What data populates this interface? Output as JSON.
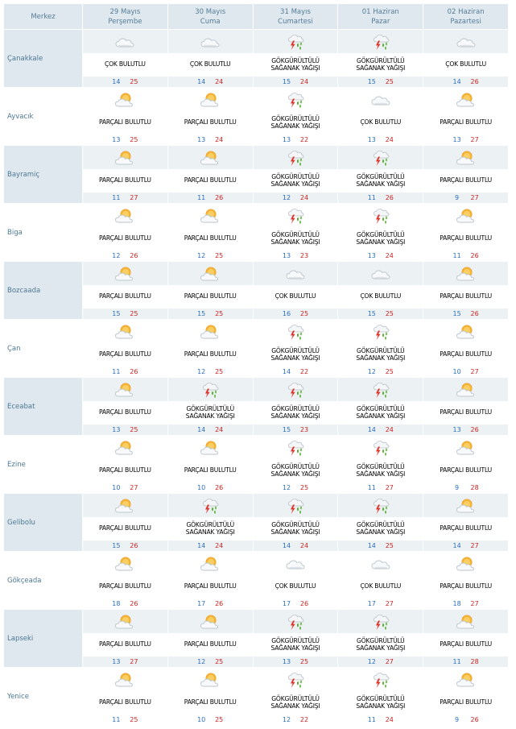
{
  "header": {
    "merkez": "Merkez",
    "days": [
      {
        "date": "29 Mayıs",
        "weekday": "Perşembe"
      },
      {
        "date": "30 Mayıs",
        "weekday": "Cuma"
      },
      {
        "date": "31 Mayıs",
        "weekday": "Cumartesi"
      },
      {
        "date": "01 Haziran",
        "weekday": "Pazar"
      },
      {
        "date": "02 Haziran",
        "weekday": "Pazartesi"
      }
    ]
  },
  "conditions": {
    "cok": [
      "ÇOK BULUTLU"
    ],
    "parcali": [
      "PARÇALI BULUTLU"
    ],
    "gok": [
      "GÖKGÜRÜLTÜLÜ",
      "SAĞANAK YAĞIŞI"
    ]
  },
  "icons": {
    "cok": "cloudy-icon",
    "parcali": "partly-cloudy-icon",
    "gok": "thunderstorm-shower-icon"
  },
  "colors": {
    "header_bg": "#dfe8ee",
    "city_text": "#4d7894",
    "min_temp": "#2a6fbe",
    "max_temp": "#cc2222"
  },
  "rows": [
    {
      "city": "Çanakkale",
      "days": [
        {
          "cond": "cok",
          "min": "14",
          "max": "25"
        },
        {
          "cond": "cok",
          "min": "14",
          "max": "24"
        },
        {
          "cond": "gok",
          "min": "15",
          "max": "24"
        },
        {
          "cond": "gok",
          "min": "15",
          "max": "25"
        },
        {
          "cond": "cok",
          "min": "14",
          "max": "26"
        }
      ]
    },
    {
      "city": "Ayvacık",
      "days": [
        {
          "cond": "parcali",
          "min": "13",
          "max": "25"
        },
        {
          "cond": "parcali",
          "min": "13",
          "max": "24"
        },
        {
          "cond": "gok",
          "min": "13",
          "max": "22"
        },
        {
          "cond": "cok",
          "min": "13",
          "max": "24"
        },
        {
          "cond": "parcali",
          "min": "13",
          "max": "27"
        }
      ]
    },
    {
      "city": "Bayramiç",
      "days": [
        {
          "cond": "parcali",
          "min": "11",
          "max": "27"
        },
        {
          "cond": "parcali",
          "min": "11",
          "max": "26"
        },
        {
          "cond": "gok",
          "min": "12",
          "max": "24"
        },
        {
          "cond": "gok",
          "min": "11",
          "max": "26"
        },
        {
          "cond": "parcali",
          "min": "9",
          "max": "27"
        }
      ]
    },
    {
      "city": "Biga",
      "days": [
        {
          "cond": "parcali",
          "min": "12",
          "max": "26"
        },
        {
          "cond": "parcali",
          "min": "12",
          "max": "25"
        },
        {
          "cond": "gok",
          "min": "13",
          "max": "23"
        },
        {
          "cond": "gok",
          "min": "13",
          "max": "24"
        },
        {
          "cond": "parcali",
          "min": "11",
          "max": "26"
        }
      ]
    },
    {
      "city": "Bozcaada",
      "days": [
        {
          "cond": "parcali",
          "min": "15",
          "max": "25"
        },
        {
          "cond": "parcali",
          "min": "15",
          "max": "25"
        },
        {
          "cond": "cok",
          "min": "16",
          "max": "25"
        },
        {
          "cond": "cok",
          "min": "15",
          "max": "25"
        },
        {
          "cond": "parcali",
          "min": "15",
          "max": "26"
        }
      ]
    },
    {
      "city": "Çan",
      "days": [
        {
          "cond": "parcali",
          "min": "11",
          "max": "26"
        },
        {
          "cond": "parcali",
          "min": "12",
          "max": "25"
        },
        {
          "cond": "gok",
          "min": "14",
          "max": "22"
        },
        {
          "cond": "gok",
          "min": "12",
          "max": "25"
        },
        {
          "cond": "parcali",
          "min": "10",
          "max": "27"
        }
      ]
    },
    {
      "city": "Eceabat",
      "days": [
        {
          "cond": "parcali",
          "min": "13",
          "max": "25"
        },
        {
          "cond": "gok",
          "min": "14",
          "max": "24"
        },
        {
          "cond": "gok",
          "min": "15",
          "max": "23"
        },
        {
          "cond": "gok",
          "min": "14",
          "max": "24"
        },
        {
          "cond": "parcali",
          "min": "13",
          "max": "26"
        }
      ]
    },
    {
      "city": "Ezine",
      "days": [
        {
          "cond": "parcali",
          "min": "10",
          "max": "27"
        },
        {
          "cond": "parcali",
          "min": "10",
          "max": "26"
        },
        {
          "cond": "gok",
          "min": "12",
          "max": "25"
        },
        {
          "cond": "gok",
          "min": "11",
          "max": "27"
        },
        {
          "cond": "parcali",
          "min": "9",
          "max": "28"
        }
      ]
    },
    {
      "city": "Gelibolu",
      "days": [
        {
          "cond": "parcali",
          "min": "15",
          "max": "26"
        },
        {
          "cond": "gok",
          "min": "14",
          "max": "24"
        },
        {
          "cond": "gok",
          "min": "14",
          "max": "24"
        },
        {
          "cond": "gok",
          "min": "14",
          "max": "25"
        },
        {
          "cond": "parcali",
          "min": "14",
          "max": "27"
        }
      ]
    },
    {
      "city": "Gökçeada",
      "days": [
        {
          "cond": "parcali",
          "min": "18",
          "max": "26"
        },
        {
          "cond": "parcali",
          "min": "17",
          "max": "26"
        },
        {
          "cond": "cok",
          "min": "17",
          "max": "26"
        },
        {
          "cond": "cok",
          "min": "17",
          "max": "27"
        },
        {
          "cond": "parcali",
          "min": "18",
          "max": "27"
        }
      ]
    },
    {
      "city": "Lapseki",
      "days": [
        {
          "cond": "parcali",
          "min": "13",
          "max": "27"
        },
        {
          "cond": "parcali",
          "min": "12",
          "max": "25"
        },
        {
          "cond": "gok",
          "min": "13",
          "max": "25"
        },
        {
          "cond": "gok",
          "min": "12",
          "max": "27"
        },
        {
          "cond": "parcali",
          "min": "11",
          "max": "28"
        }
      ]
    },
    {
      "city": "Yenice",
      "days": [
        {
          "cond": "parcali",
          "min": "11",
          "max": "25"
        },
        {
          "cond": "parcali",
          "min": "10",
          "max": "25"
        },
        {
          "cond": "gok",
          "min": "12",
          "max": "22"
        },
        {
          "cond": "gok",
          "min": "11",
          "max": "24"
        },
        {
          "cond": "parcali",
          "min": "9",
          "max": "26"
        }
      ]
    }
  ]
}
